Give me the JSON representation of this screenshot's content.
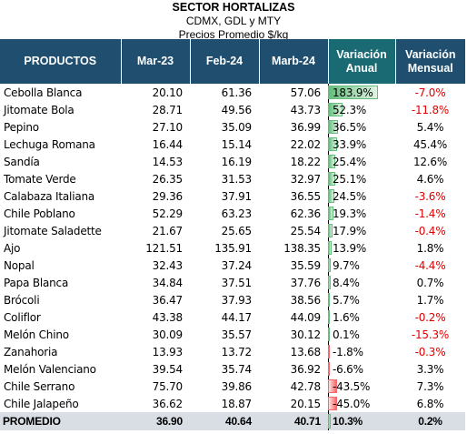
{
  "header": {
    "title": "SECTOR HORTALIZAS",
    "subtitle": "CDMX, GDL y MTY",
    "units": "Precios Promedio $/kg"
  },
  "columns": {
    "product": "PRODUCTOS",
    "c1": "Mar-23",
    "c2": "Feb-24",
    "c3": "Marb-24",
    "anual_1": "Variación",
    "anual_2": "Anual",
    "mens_1": "Variación",
    "mens_2": "Mensual"
  },
  "rows": [
    {
      "name": "Cebolla Blanca",
      "mar23": "20.10",
      "feb24": "61.36",
      "mar24": "57.06",
      "anual": "183.9%",
      "anual_value": 183.9,
      "mensual": "-7.0%"
    },
    {
      "name": "Jitomate Bola",
      "mar23": "28.71",
      "feb24": "49.56",
      "mar24": "43.73",
      "anual": "52.3%",
      "anual_value": 52.3,
      "mensual": "-11.8%"
    },
    {
      "name": "Pepino",
      "mar23": "27.10",
      "feb24": "35.09",
      "mar24": "36.99",
      "anual": "36.5%",
      "anual_value": 36.5,
      "mensual": "5.4%"
    },
    {
      "name": "Lechuga Romana",
      "mar23": "16.44",
      "feb24": "15.14",
      "mar24": "22.02",
      "anual": "33.9%",
      "anual_value": 33.9,
      "mensual": "45.4%"
    },
    {
      "name": "Sandía",
      "mar23": "14.53",
      "feb24": "16.19",
      "mar24": "18.22",
      "anual": "25.4%",
      "anual_value": 25.4,
      "mensual": "12.6%"
    },
    {
      "name": "Tomate Verde",
      "mar23": "26.35",
      "feb24": "31.53",
      "mar24": "32.97",
      "anual": "25.1%",
      "anual_value": 25.1,
      "mensual": "4.6%"
    },
    {
      "name": "Calabaza Italiana",
      "mar23": "29.36",
      "feb24": "37.91",
      "mar24": "36.55",
      "anual": "24.5%",
      "anual_value": 24.5,
      "mensual": "-3.6%"
    },
    {
      "name": "Chile Poblano",
      "mar23": "52.29",
      "feb24": "63.23",
      "mar24": "62.36",
      "anual": "19.3%",
      "anual_value": 19.3,
      "mensual": "-1.4%"
    },
    {
      "name": "Jitomate Saladette",
      "mar23": "21.67",
      "feb24": "25.65",
      "mar24": "25.54",
      "anual": "17.9%",
      "anual_value": 17.9,
      "mensual": "-0.4%"
    },
    {
      "name": "Ajo",
      "mar23": "121.51",
      "feb24": "135.91",
      "mar24": "138.35",
      "anual": "13.9%",
      "anual_value": 13.9,
      "mensual": "1.8%"
    },
    {
      "name": "Nopal",
      "mar23": "32.43",
      "feb24": "37.24",
      "mar24": "35.59",
      "anual": "9.7%",
      "anual_value": 9.7,
      "mensual": "-4.4%"
    },
    {
      "name": "Papa Blanca",
      "mar23": "34.84",
      "feb24": "37.51",
      "mar24": "37.76",
      "anual": "8.4%",
      "anual_value": 8.4,
      "mensual": "0.7%"
    },
    {
      "name": "Brócoli",
      "mar23": "36.47",
      "feb24": "37.93",
      "mar24": "38.56",
      "anual": "5.7%",
      "anual_value": 5.7,
      "mensual": "1.7%"
    },
    {
      "name": "Coliflor",
      "mar23": "43.38",
      "feb24": "44.17",
      "mar24": "44.09",
      "anual": "1.6%",
      "anual_value": 1.6,
      "mensual": "-0.2%"
    },
    {
      "name": "Melón Chino",
      "mar23": "30.09",
      "feb24": "35.57",
      "mar24": "30.12",
      "anual": "0.1%",
      "anual_value": 0.1,
      "mensual": "-15.3%"
    },
    {
      "name": "Zanahoria",
      "mar23": "13.93",
      "feb24": "13.72",
      "mar24": "13.68",
      "anual": "-1.8%",
      "anual_value": -1.8,
      "mensual": "-0.3%"
    },
    {
      "name": "Melón Valenciano",
      "mar23": "39.54",
      "feb24": "35.74",
      "mar24": "36.92",
      "anual": "-6.6%",
      "anual_value": -6.6,
      "mensual": "3.3%"
    },
    {
      "name": "Chile Serrano",
      "mar23": "75.70",
      "feb24": "39.86",
      "mar24": "42.78",
      "anual": "-43.5%",
      "anual_value": -43.5,
      "mensual": "7.3%"
    },
    {
      "name": "Chile Jalapeño",
      "mar23": "36.62",
      "feb24": "18.87",
      "mar24": "20.15",
      "anual": "-45.0%",
      "anual_value": -45.0,
      "mensual": "6.8%"
    }
  ],
  "total": {
    "name": "PROMEDIO",
    "mar23": "36.90",
    "feb24": "40.64",
    "mar24": "40.71",
    "anual": "10.3%",
    "anual_value": 10.3,
    "mensual": "0.2%"
  },
  "colors": {
    "header_bg": "#1f4e6e",
    "header_highlight": "#1a6a73",
    "positive_bar": "#63be7b",
    "negative_bar": "#f8696b",
    "negative_text": "#e00000",
    "total_bg": "#d9dee4"
  }
}
